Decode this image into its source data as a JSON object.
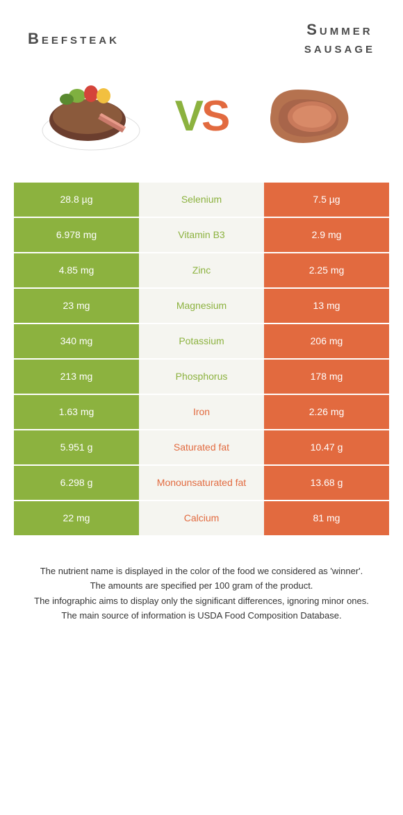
{
  "colors": {
    "left": "#8cb23f",
    "right": "#e26a3f",
    "mid_bg": "#f5f5f0"
  },
  "header": {
    "left_title": "Beefsteak",
    "right_title_line1": "Summer",
    "right_title_line2": "sausage"
  },
  "vs": {
    "v": "V",
    "s": "S"
  },
  "rows": [
    {
      "left": "28.8 µg",
      "label": "Selenium",
      "right": "7.5 µg",
      "winner": "left"
    },
    {
      "left": "6.978 mg",
      "label": "Vitamin B3",
      "right": "2.9 mg",
      "winner": "left"
    },
    {
      "left": "4.85 mg",
      "label": "Zinc",
      "right": "2.25 mg",
      "winner": "left"
    },
    {
      "left": "23 mg",
      "label": "Magnesium",
      "right": "13 mg",
      "winner": "left"
    },
    {
      "left": "340 mg",
      "label": "Potassium",
      "right": "206 mg",
      "winner": "left"
    },
    {
      "left": "213 mg",
      "label": "Phosphorus",
      "right": "178 mg",
      "winner": "left"
    },
    {
      "left": "1.63 mg",
      "label": "Iron",
      "right": "2.26 mg",
      "winner": "right"
    },
    {
      "left": "5.951 g",
      "label": "Saturated fat",
      "right": "10.47 g",
      "winner": "right"
    },
    {
      "left": "6.298 g",
      "label": "Monounsaturated fat",
      "right": "13.68 g",
      "winner": "right"
    },
    {
      "left": "22 mg",
      "label": "Calcium",
      "right": "81 mg",
      "winner": "right"
    }
  ],
  "footer": {
    "line1": "The nutrient name is displayed in the color of the food we considered as 'winner'.",
    "line2": "The amounts are specified per 100 gram of the product.",
    "line3": "The infographic aims to display only the significant differences, ignoring minor ones.",
    "line4": "The main source of information is USDA Food Composition Database."
  }
}
